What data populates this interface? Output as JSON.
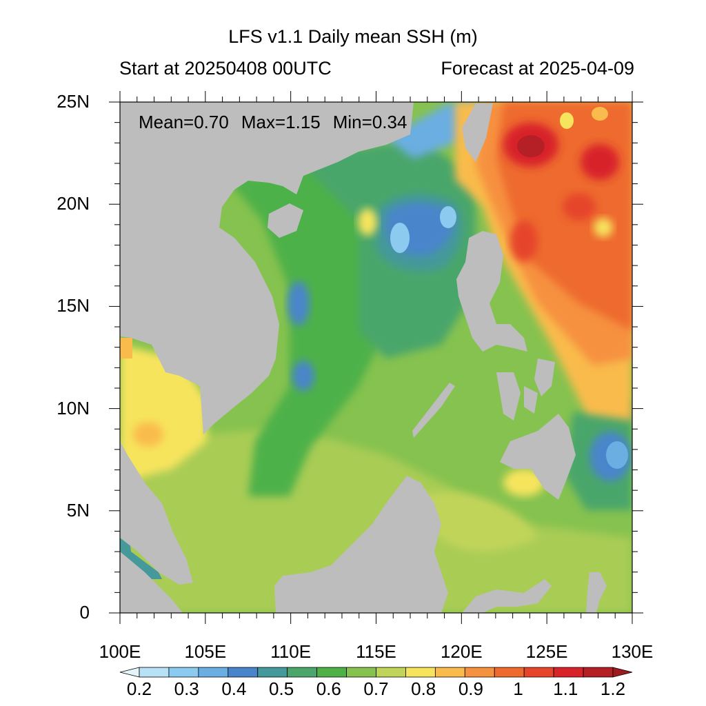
{
  "title": "LFS v1.1 Daily mean SSH (m)",
  "subtitle_left": "Start at 20250408 00UTC",
  "subtitle_right": "Forecast at 2025-04-09",
  "stats": {
    "mean": "Mean=0.70",
    "max": "Max=1.15",
    "min": "Min=0.34"
  },
  "map": {
    "lon_range": [
      100,
      130
    ],
    "lat_range": [
      0,
      25
    ],
    "x_ticks": [
      "100E",
      "105E",
      "110E",
      "115E",
      "120E",
      "125E",
      "130E"
    ],
    "y_ticks": [
      "25N",
      "20N",
      "15N",
      "10N",
      "5N",
      "0"
    ],
    "land_color": "#bdbdbd"
  },
  "colorbar": {
    "labels": [
      "0.2",
      "0.3",
      "0.4",
      "0.5",
      "0.6",
      "0.7",
      "0.8",
      "0.9",
      "1",
      "1.1",
      "1.2"
    ],
    "colors": [
      "#e5f4fb",
      "#b9e1f5",
      "#8ccbef",
      "#6aaee2",
      "#4a85cb",
      "#45999a",
      "#4aa66a",
      "#4eb148",
      "#86c24f",
      "#c1d45a",
      "#f7e45d",
      "#f9bb4c",
      "#f6913f",
      "#ee6a2e",
      "#e6452b",
      "#d8232a",
      "#b51f26",
      "#9e1a1f"
    ]
  }
}
